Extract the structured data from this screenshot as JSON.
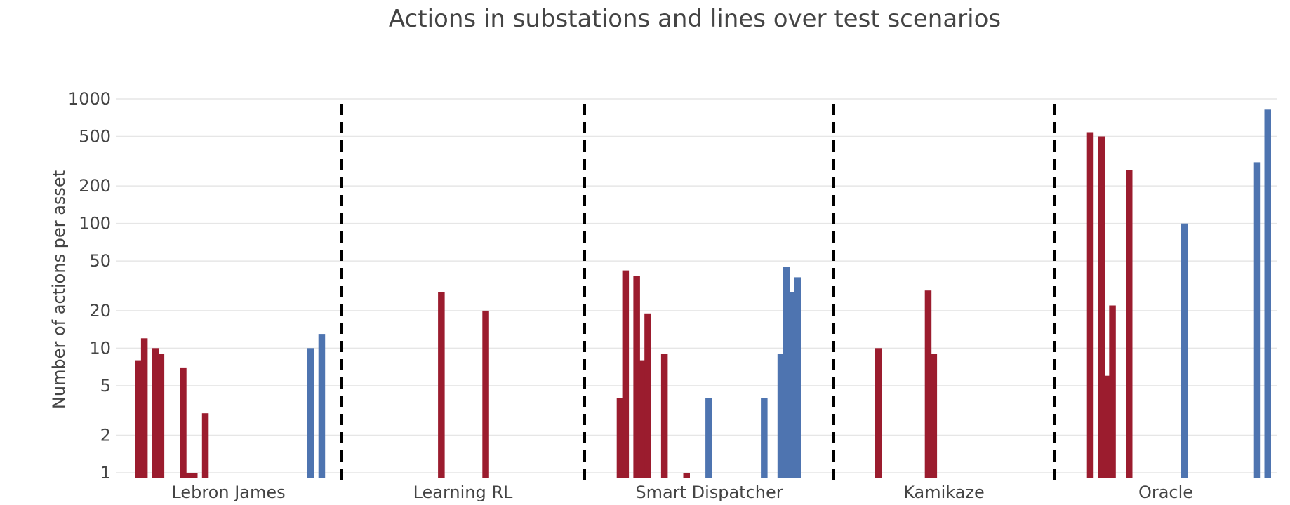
{
  "chart_data": {
    "type": "bar",
    "title": "Actions in substations and lines over test scenarios",
    "xlabel": "",
    "ylabel": "Number of actions per asset",
    "yscale": "log",
    "ylim": [
      1,
      1000
    ],
    "yticks": [
      1,
      2,
      5,
      10,
      20,
      50,
      100,
      200,
      500,
      1000
    ],
    "ytick_labels": [
      "1",
      "2",
      "5",
      "10",
      "20",
      "50",
      "100",
      "200",
      "500",
      "1000"
    ],
    "grid": true,
    "separators": "dashed",
    "series_colors": {
      "substations": "#9b1c2e",
      "lines": "#4e74b0"
    },
    "groups": [
      {
        "name": "Lebron James",
        "bars": [
          {
            "slot": 0,
            "type": "substations",
            "value": 8
          },
          {
            "slot": 1,
            "type": "substations",
            "value": 12
          },
          {
            "slot": 3,
            "type": "substations",
            "value": 10
          },
          {
            "slot": 4,
            "type": "substations",
            "value": 9
          },
          {
            "slot": 8,
            "type": "substations",
            "value": 7
          },
          {
            "slot": 9,
            "type": "substations",
            "value": 1
          },
          {
            "slot": 10,
            "type": "substations",
            "value": 1
          },
          {
            "slot": 12,
            "type": "substations",
            "value": 3
          },
          {
            "slot": 31,
            "type": "lines",
            "value": 10
          },
          {
            "slot": 33,
            "type": "lines",
            "value": 13
          }
        ]
      },
      {
        "name": "Learning RL",
        "bars": [
          {
            "slot": 9,
            "type": "substations",
            "value": 28
          },
          {
            "slot": 17,
            "type": "substations",
            "value": 20
          }
        ]
      },
      {
        "name": "Smart Dispatcher",
        "bars": [
          {
            "slot": 3,
            "type": "substations",
            "value": 4
          },
          {
            "slot": 4,
            "type": "substations",
            "value": 42
          },
          {
            "slot": 6,
            "type": "substations",
            "value": 38
          },
          {
            "slot": 7,
            "type": "substations",
            "value": 8
          },
          {
            "slot": 8,
            "type": "substations",
            "value": 19
          },
          {
            "slot": 11,
            "type": "substations",
            "value": 9
          },
          {
            "slot": 15,
            "type": "substations",
            "value": 1
          },
          {
            "slot": 19,
            "type": "lines",
            "value": 4
          },
          {
            "slot": 29,
            "type": "lines",
            "value": 4
          },
          {
            "slot": 32,
            "type": "lines",
            "value": 9
          },
          {
            "slot": 33,
            "type": "lines",
            "value": 45
          },
          {
            "slot": 34,
            "type": "lines",
            "value": 28
          },
          {
            "slot": 35,
            "type": "lines",
            "value": 37
          }
        ]
      },
      {
        "name": "Kamikaze",
        "bars": [
          {
            "slot": 4,
            "type": "substations",
            "value": 10
          },
          {
            "slot": 13,
            "type": "substations",
            "value": 29
          },
          {
            "slot": 14,
            "type": "substations",
            "value": 9
          }
        ]
      },
      {
        "name": "Oracle",
        "bars": [
          {
            "slot": 3,
            "type": "substations",
            "value": 540
          },
          {
            "slot": 5,
            "type": "substations",
            "value": 500
          },
          {
            "slot": 6,
            "type": "substations",
            "value": 6
          },
          {
            "slot": 7,
            "type": "substations",
            "value": 22
          },
          {
            "slot": 10,
            "type": "substations",
            "value": 270
          },
          {
            "slot": 20,
            "type": "lines",
            "value": 100
          },
          {
            "slot": 33,
            "type": "lines",
            "value": 310
          },
          {
            "slot": 35,
            "type": "lines",
            "value": 820
          }
        ]
      }
    ]
  }
}
